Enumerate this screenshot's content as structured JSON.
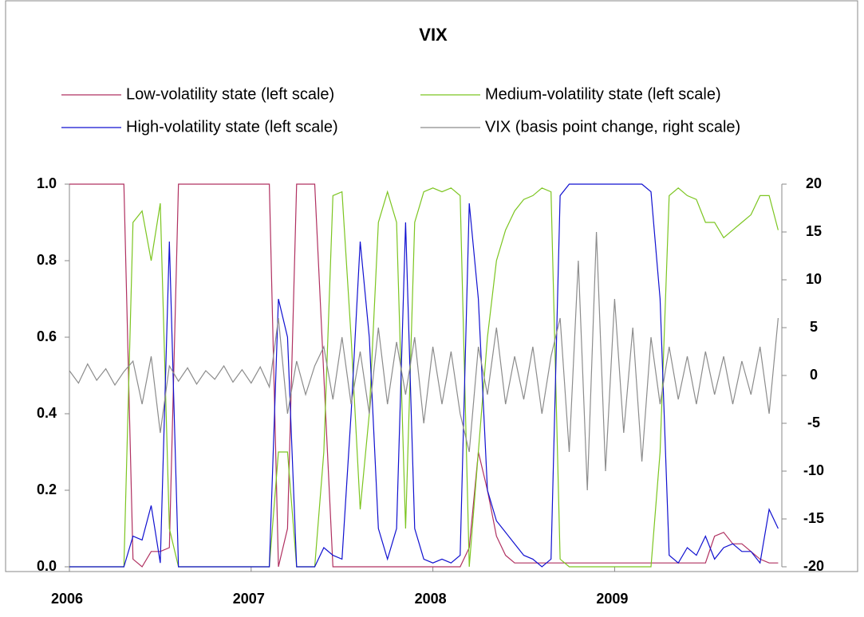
{
  "chart_data": {
    "type": "line",
    "title": "VIX",
    "x": [
      2006.0,
      2006.05,
      2006.1,
      2006.15,
      2006.2,
      2006.25,
      2006.3,
      2006.35,
      2006.4,
      2006.45,
      2006.5,
      2006.55,
      2006.6,
      2006.65,
      2006.7,
      2006.75,
      2006.8,
      2006.85,
      2006.9,
      2006.95,
      2007.0,
      2007.05,
      2007.1,
      2007.15,
      2007.2,
      2007.25,
      2007.3,
      2007.35,
      2007.4,
      2007.45,
      2007.5,
      2007.55,
      2007.6,
      2007.65,
      2007.7,
      2007.75,
      2007.8,
      2007.85,
      2007.9,
      2007.95,
      2008.0,
      2008.05,
      2008.1,
      2008.15,
      2008.2,
      2008.25,
      2008.3,
      2008.35,
      2008.4,
      2008.45,
      2008.5,
      2008.55,
      2008.6,
      2008.65,
      2008.7,
      2008.75,
      2008.8,
      2008.85,
      2008.9,
      2008.95,
      2009.0,
      2009.05,
      2009.1,
      2009.15,
      2009.2,
      2009.25,
      2009.3,
      2009.35,
      2009.4,
      2009.45,
      2009.5,
      2009.55,
      2009.6,
      2009.65,
      2009.7,
      2009.75,
      2009.8,
      2009.85,
      2009.9
    ],
    "xlim": [
      2006,
      2009.92
    ],
    "xticks": [
      2006,
      2007,
      2008,
      2009
    ],
    "ylim": [
      0,
      1
    ],
    "yticks": [
      {
        "value": 0,
        "label": "0.0"
      },
      0.2,
      0.4,
      0.6,
      0.8,
      {
        "value": 1,
        "label": "1.0"
      }
    ],
    "y2lim": [
      -20,
      20
    ],
    "y2ticks": [
      -20,
      -15,
      -10,
      -5,
      0,
      5,
      10,
      15,
      20
    ],
    "legend": "top",
    "series": [
      {
        "name": "Low-volatility state (left scale)",
        "color": "#b03060",
        "values": [
          1,
          1,
          1,
          1,
          1,
          1,
          1,
          0.02,
          0,
          0.04,
          0.04,
          0.05,
          1,
          1,
          1,
          1,
          1,
          1,
          1,
          1,
          1,
          1,
          1,
          0,
          0.1,
          1,
          1,
          1,
          0.5,
          0,
          0,
          0,
          0,
          0,
          0,
          0,
          0,
          0,
          0,
          0,
          0,
          0,
          0,
          0,
          0.05,
          0.3,
          0.2,
          0.08,
          0.03,
          0.01,
          0.01,
          0.01,
          0.01,
          0.01,
          0.01,
          0.01,
          0.01,
          0.01,
          0.01,
          0.01,
          0.01,
          0.01,
          0.01,
          0.01,
          0.01,
          0.01,
          0.01,
          0.01,
          0.01,
          0.01,
          0.01,
          0.08,
          0.09,
          0.06,
          0.06,
          0.04,
          0.02,
          0.01,
          0.01
        ]
      },
      {
        "name": "Medium-volatility state (left scale)",
        "color": "#7cc520",
        "values": [
          0,
          0,
          0,
          0,
          0,
          0,
          0,
          0.9,
          0.93,
          0.8,
          0.95,
          0.1,
          0,
          0,
          0,
          0,
          0,
          0,
          0,
          0,
          0,
          0,
          0,
          0.3,
          0.3,
          0,
          0,
          0,
          0.3,
          0.97,
          0.98,
          0.6,
          0.15,
          0.4,
          0.9,
          0.98,
          0.9,
          0.1,
          0.9,
          0.98,
          0.99,
          0.98,
          0.99,
          0.97,
          0,
          0.3,
          0.6,
          0.8,
          0.88,
          0.93,
          0.96,
          0.97,
          0.99,
          0.98,
          0.02,
          0,
          0,
          0,
          0,
          0,
          0,
          0,
          0,
          0,
          0,
          0.3,
          0.97,
          0.99,
          0.97,
          0.96,
          0.9,
          0.9,
          0.86,
          0.88,
          0.9,
          0.92,
          0.97,
          0.97,
          0.88
        ]
      },
      {
        "name": "High-volatility state (left scale)",
        "color": "#1010d0",
        "values": [
          0,
          0,
          0,
          0,
          0,
          0,
          0,
          0.08,
          0.07,
          0.16,
          0.01,
          0.85,
          0,
          0,
          0,
          0,
          0,
          0,
          0,
          0,
          0,
          0,
          0,
          0.7,
          0.6,
          0,
          0,
          0,
          0.05,
          0.03,
          0.02,
          0.4,
          0.85,
          0.6,
          0.1,
          0.02,
          0.1,
          0.9,
          0.1,
          0.02,
          0.01,
          0.02,
          0.01,
          0.03,
          0.95,
          0.7,
          0.2,
          0.12,
          0.09,
          0.06,
          0.03,
          0.02,
          0,
          0.02,
          0.97,
          1,
          1,
          1,
          1,
          1,
          1,
          1,
          1,
          1,
          0.98,
          0.7,
          0.03,
          0.01,
          0.05,
          0.03,
          0.08,
          0.02,
          0.05,
          0.06,
          0.04,
          0.04,
          0.01,
          0.15,
          0.1
        ]
      },
      {
        "name": "VIX (basis point change, right scale)",
        "color": "#8c8c8c",
        "axis": "y2",
        "values": [
          0.5,
          -0.8,
          1.2,
          -0.5,
          0.7,
          -1,
          0.4,
          1.5,
          -3,
          2,
          -6,
          1,
          -0.6,
          0.8,
          -0.9,
          0.5,
          -0.4,
          1,
          -0.7,
          0.6,
          -0.8,
          0.9,
          -1.2,
          6,
          -4,
          1.5,
          -2,
          1,
          3,
          -2.5,
          4,
          -3,
          2.5,
          -4,
          5,
          -3,
          3.5,
          -2,
          4,
          -5,
          3,
          -3,
          2.5,
          -4,
          -8,
          3,
          -2,
          5,
          -3,
          2,
          -2.5,
          3,
          -4,
          2,
          6,
          -8,
          12,
          -12,
          15,
          -10,
          8,
          -6,
          5,
          -9,
          4,
          -3,
          3,
          -2.5,
          2,
          -3,
          2.5,
          -2,
          2,
          -3,
          1.5,
          -2,
          3,
          -4,
          6
        ]
      }
    ]
  }
}
